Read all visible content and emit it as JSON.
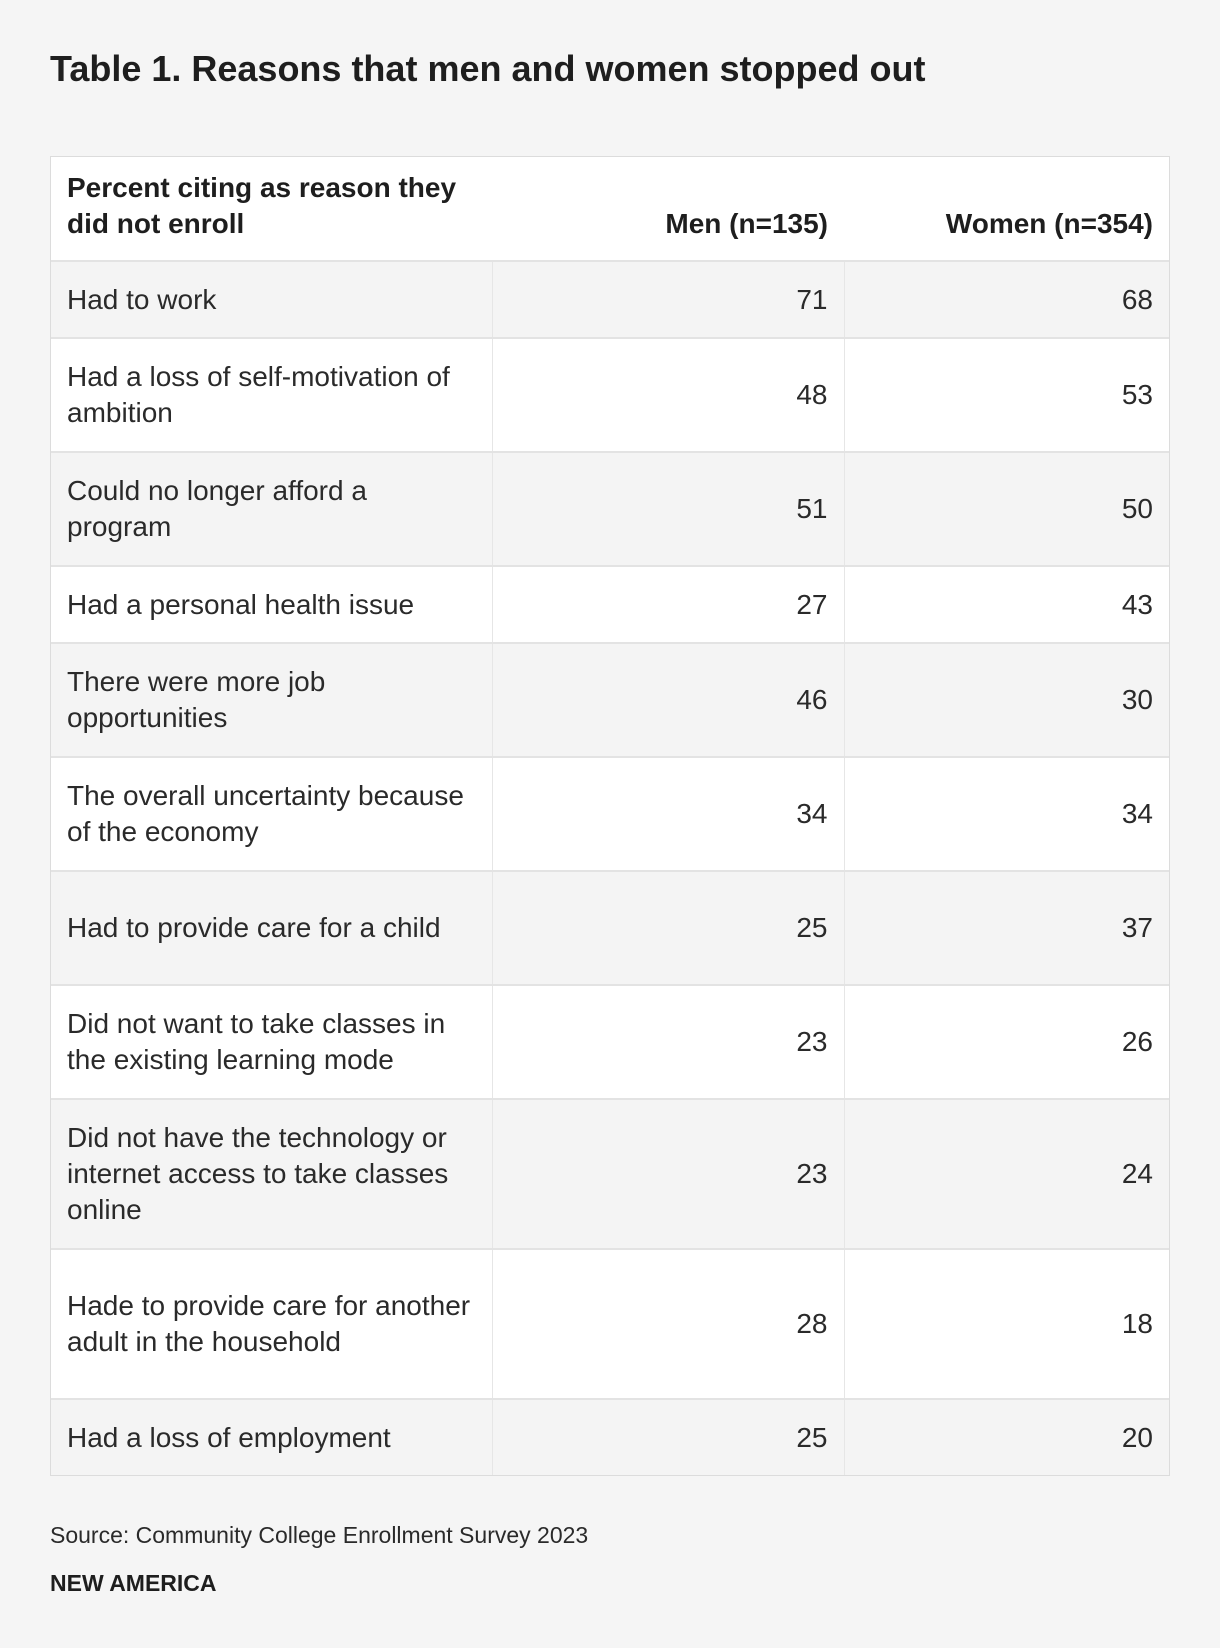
{
  "chart_data": {
    "type": "table",
    "title": "Table 1. Reasons that men and women stopped out",
    "columns": [
      "Percent citing as reason they did not enroll",
      "Men (n=135)",
      "Women (n=354)"
    ],
    "rows": [
      {
        "label": "Had to work",
        "men": "71",
        "women": "68"
      },
      {
        "label": "Had a loss of self-motivation of ambition",
        "men": "48",
        "women": "53"
      },
      {
        "label": "Could no longer afford a program",
        "men": "51",
        "women": "50"
      },
      {
        "label": "Had a personal health issue",
        "men": "27",
        "women": "43"
      },
      {
        "label": "There were more job opportunities",
        "men": "46",
        "women": "30"
      },
      {
        "label": "The overall uncertainty because of the economy",
        "men": "34",
        "women": "34"
      },
      {
        "label": "Had to provide care for a child",
        "men": "25",
        "women": "37"
      },
      {
        "label": "Did not want to take classes in the existing learning mode",
        "men": "23",
        "women": "26"
      },
      {
        "label": "Did not have the technology or internet access to take classes online",
        "men": "23",
        "women": "24"
      },
      {
        "label": "Hade to provide care for another adult in the household",
        "men": "28",
        "women": "18"
      },
      {
        "label": "Had a loss of employment",
        "men": "25",
        "women": "20"
      }
    ],
    "source": "Source: Community College Enrollment Survey 2023"
  },
  "footer": {
    "brand": "NEW AMERICA"
  }
}
